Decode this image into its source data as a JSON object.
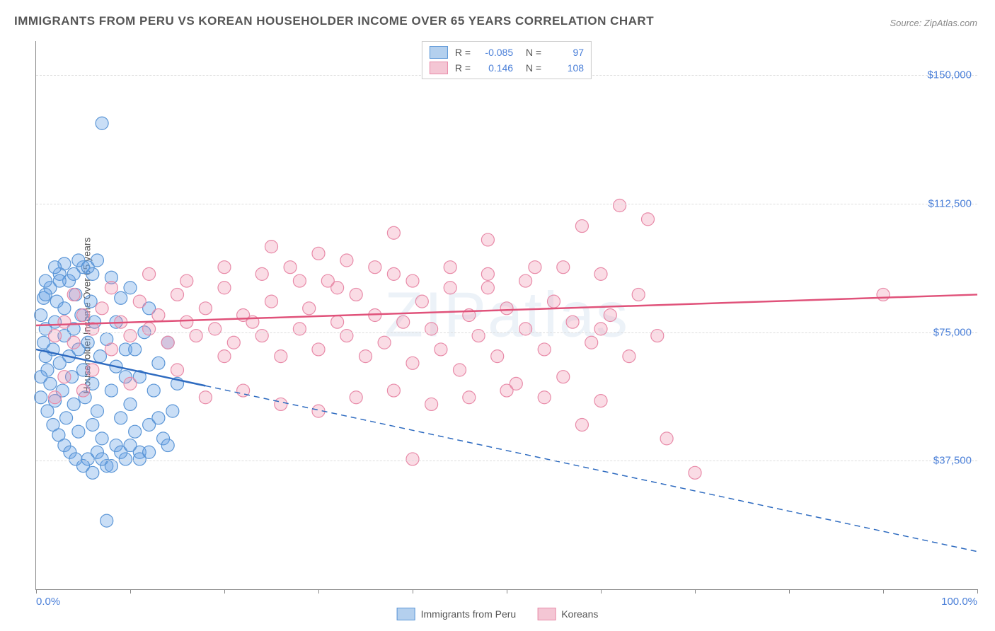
{
  "title": "IMMIGRANTS FROM PERU VS KOREAN HOUSEHOLDER INCOME OVER 65 YEARS CORRELATION CHART",
  "source": "Source: ZipAtlas.com",
  "watermark": "ZIPatlas",
  "ylabel": "Householder Income Over 65 years",
  "chart": {
    "type": "scatter",
    "xlim": [
      0,
      100
    ],
    "ylim": [
      0,
      160000
    ],
    "xtick_positions": [
      0,
      10,
      20,
      30,
      40,
      50,
      60,
      70,
      80,
      90,
      100
    ],
    "xtick_labels": {
      "0": "0.0%",
      "100": "100.0%"
    },
    "ytick_positions": [
      37500,
      75000,
      112500,
      150000
    ],
    "ytick_labels": [
      "$37,500",
      "$75,000",
      "$112,500",
      "$150,000"
    ],
    "grid_color": "#dddddd",
    "axis_color": "#888888",
    "background_color": "#ffffff",
    "label_color": "#4a7fd8",
    "series": [
      {
        "name": "Immigrants from Peru",
        "color_fill": "rgba(100, 160, 230, 0.35)",
        "color_stroke": "#5a95d6",
        "legend_swatch_fill": "#b4d0ee",
        "legend_swatch_border": "#5a95d6",
        "r_value": "-0.085",
        "n_value": "97",
        "marker_radius": 9,
        "trendline": {
          "color": "#2e6bc0",
          "width": 2.5,
          "solid_x_end": 18,
          "y_start": 70000,
          "y_end": 11000
        },
        "points": [
          [
            0.5,
            80000
          ],
          [
            0.8,
            72000
          ],
          [
            1,
            68000
          ],
          [
            1,
            76000
          ],
          [
            1.2,
            64000
          ],
          [
            1.5,
            88000
          ],
          [
            1.5,
            60000
          ],
          [
            1.8,
            70000
          ],
          [
            2,
            78000
          ],
          [
            2,
            55000
          ],
          [
            2.2,
            84000
          ],
          [
            2.5,
            66000
          ],
          [
            2.5,
            92000
          ],
          [
            2.8,
            58000
          ],
          [
            3,
            74000
          ],
          [
            3,
            82000
          ],
          [
            3.2,
            50000
          ],
          [
            3.5,
            68000
          ],
          [
            3.5,
            90000
          ],
          [
            3.8,
            62000
          ],
          [
            4,
            76000
          ],
          [
            4,
            54000
          ],
          [
            4.2,
            86000
          ],
          [
            4.5,
            70000
          ],
          [
            4.5,
            46000
          ],
          [
            4.8,
            80000
          ],
          [
            5,
            64000
          ],
          [
            5,
            94000
          ],
          [
            5.2,
            56000
          ],
          [
            5.5,
            72000
          ],
          [
            5.5,
            38000
          ],
          [
            5.8,
            84000
          ],
          [
            6,
            60000
          ],
          [
            6,
            48000
          ],
          [
            6.2,
            78000
          ],
          [
            6.5,
            52000
          ],
          [
            6.5,
            40000
          ],
          [
            6.8,
            68000
          ],
          [
            7,
            44000
          ],
          [
            7,
            136000
          ],
          [
            7.5,
            73000
          ],
          [
            7.5,
            36000
          ],
          [
            8,
            58000
          ],
          [
            8,
            91000
          ],
          [
            8.5,
            42000
          ],
          [
            8.5,
            65000
          ],
          [
            9,
            50000
          ],
          [
            9,
            85000
          ],
          [
            9.5,
            38000
          ],
          [
            9.5,
            70000
          ],
          [
            10,
            54000
          ],
          [
            10,
            88000
          ],
          [
            10.5,
            46000
          ],
          [
            11,
            62000
          ],
          [
            11,
            40000
          ],
          [
            11.5,
            75000
          ],
          [
            12,
            48000
          ],
          [
            12,
            82000
          ],
          [
            12.5,
            58000
          ],
          [
            13,
            66000
          ],
          [
            13.5,
            44000
          ],
          [
            14,
            72000
          ],
          [
            14.5,
            52000
          ],
          [
            15,
            60000
          ],
          [
            7.5,
            20000
          ],
          [
            6,
            92000
          ],
          [
            4.5,
            96000
          ],
          [
            3.0,
            95000
          ],
          [
            2.0,
            94000
          ],
          [
            1.0,
            90000
          ],
          [
            0.8,
            85000
          ],
          [
            0.5,
            62000
          ],
          [
            0.5,
            56000
          ],
          [
            1.2,
            52000
          ],
          [
            1.8,
            48000
          ],
          [
            2.4,
            45000
          ],
          [
            3.0,
            42000
          ],
          [
            3.6,
            40000
          ],
          [
            4.2,
            38000
          ],
          [
            5.0,
            36000
          ],
          [
            6.0,
            34000
          ],
          [
            7.0,
            38000
          ],
          [
            8.0,
            36000
          ],
          [
            9.0,
            40000
          ],
          [
            10.0,
            42000
          ],
          [
            11.0,
            38000
          ],
          [
            12.0,
            40000
          ],
          [
            13.0,
            50000
          ],
          [
            14.0,
            42000
          ],
          [
            6.5,
            96000
          ],
          [
            5.5,
            94000
          ],
          [
            4.0,
            92000
          ],
          [
            2.5,
            90000
          ],
          [
            1.0,
            86000
          ],
          [
            8.5,
            78000
          ],
          [
            9.5,
            62000
          ],
          [
            10.5,
            70000
          ]
        ]
      },
      {
        "name": "Koreans",
        "color_fill": "rgba(240, 140, 170, 0.30)",
        "color_stroke": "#e88aa8",
        "legend_swatch_fill": "#f4c6d4",
        "legend_swatch_border": "#e88aa8",
        "r_value": "0.146",
        "n_value": "108",
        "marker_radius": 9,
        "trendline": {
          "color": "#e0527a",
          "width": 2.5,
          "solid_x_end": 100,
          "y_start": 77000,
          "y_end": 86000
        },
        "points": [
          [
            2,
            74000
          ],
          [
            3,
            78000
          ],
          [
            4,
            72000
          ],
          [
            5,
            80000
          ],
          [
            6,
            76000
          ],
          [
            7,
            82000
          ],
          [
            8,
            70000
          ],
          [
            9,
            78000
          ],
          [
            10,
            74000
          ],
          [
            11,
            84000
          ],
          [
            12,
            76000
          ],
          [
            13,
            80000
          ],
          [
            14,
            72000
          ],
          [
            15,
            86000
          ],
          [
            16,
            78000
          ],
          [
            17,
            74000
          ],
          [
            18,
            82000
          ],
          [
            19,
            76000
          ],
          [
            20,
            88000
          ],
          [
            21,
            72000
          ],
          [
            22,
            80000
          ],
          [
            23,
            78000
          ],
          [
            24,
            74000
          ],
          [
            25,
            84000
          ],
          [
            26,
            68000
          ],
          [
            27,
            94000
          ],
          [
            28,
            76000
          ],
          [
            29,
            82000
          ],
          [
            30,
            70000
          ],
          [
            31,
            90000
          ],
          [
            32,
            78000
          ],
          [
            33,
            74000
          ],
          [
            34,
            86000
          ],
          [
            35,
            68000
          ],
          [
            36,
            80000
          ],
          [
            37,
            72000
          ],
          [
            38,
            92000
          ],
          [
            39,
            78000
          ],
          [
            40,
            66000
          ],
          [
            41,
            84000
          ],
          [
            42,
            76000
          ],
          [
            43,
            70000
          ],
          [
            44,
            94000
          ],
          [
            45,
            64000
          ],
          [
            46,
            80000
          ],
          [
            47,
            74000
          ],
          [
            48,
            88000
          ],
          [
            49,
            68000
          ],
          [
            50,
            82000
          ],
          [
            51,
            60000
          ],
          [
            52,
            76000
          ],
          [
            53,
            94000
          ],
          [
            54,
            70000
          ],
          [
            55,
            84000
          ],
          [
            56,
            62000
          ],
          [
            57,
            78000
          ],
          [
            58,
            106000
          ],
          [
            59,
            72000
          ],
          [
            60,
            55000
          ],
          [
            61,
            80000
          ],
          [
            62,
            112000
          ],
          [
            63,
            68000
          ],
          [
            64,
            86000
          ],
          [
            65,
            108000
          ],
          [
            66,
            74000
          ],
          [
            67,
            44000
          ],
          [
            30,
            98000
          ],
          [
            25,
            100000
          ],
          [
            33,
            96000
          ],
          [
            20,
            68000
          ],
          [
            15,
            64000
          ],
          [
            10,
            60000
          ],
          [
            5,
            58000
          ],
          [
            40,
            38000
          ],
          [
            70,
            34000
          ],
          [
            90,
            86000
          ],
          [
            18,
            56000
          ],
          [
            22,
            58000
          ],
          [
            26,
            54000
          ],
          [
            30,
            52000
          ],
          [
            34,
            56000
          ],
          [
            38,
            58000
          ],
          [
            42,
            54000
          ],
          [
            46,
            56000
          ],
          [
            50,
            58000
          ],
          [
            54,
            56000
          ],
          [
            58,
            48000
          ],
          [
            12,
            92000
          ],
          [
            16,
            90000
          ],
          [
            20,
            94000
          ],
          [
            24,
            92000
          ],
          [
            28,
            90000
          ],
          [
            32,
            88000
          ],
          [
            36,
            94000
          ],
          [
            40,
            90000
          ],
          [
            44,
            88000
          ],
          [
            48,
            92000
          ],
          [
            52,
            90000
          ],
          [
            56,
            94000
          ],
          [
            60,
            92000
          ],
          [
            38,
            104000
          ],
          [
            48,
            102000
          ],
          [
            8,
            88000
          ],
          [
            4,
            86000
          ],
          [
            6,
            64000
          ],
          [
            3,
            62000
          ],
          [
            2,
            56000
          ],
          [
            60,
            76000
          ]
        ]
      }
    ]
  },
  "legend_bottom": [
    {
      "label": "Immigrants from Peru",
      "fill": "#b4d0ee",
      "border": "#5a95d6"
    },
    {
      "label": "Koreans",
      "fill": "#f4c6d4",
      "border": "#e88aa8"
    }
  ]
}
